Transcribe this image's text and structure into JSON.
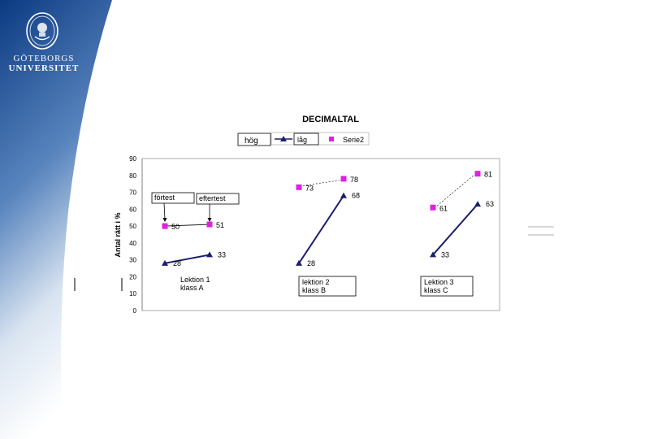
{
  "slide": {
    "university_line1": "GÖTEBORGS",
    "university_line2": "UNIVERSITET",
    "colors": {
      "sidebar_top": "#0b3a82",
      "sidebar_bottom": "#ffffff",
      "white": "#ffffff"
    },
    "icons": {
      "logo": "university-seal-icon"
    }
  },
  "chart_data": {
    "type": "line",
    "title": "DECIMALTAL",
    "ylabel": "Antal rätt i %",
    "xlabel": "",
    "ylim": [
      0,
      90
    ],
    "yticks": [
      0,
      10,
      20,
      30,
      40,
      50,
      60,
      70,
      80,
      90
    ],
    "grid": false,
    "legend_position": "top",
    "legend_box_label": "hög",
    "legend": [
      {
        "name": "låg",
        "marker": "triangle",
        "color": "#1b1f6b"
      },
      {
        "name": "Serie2",
        "marker": "square",
        "color": "#e020e0"
      }
    ],
    "series": [
      {
        "name": "låg",
        "color": "#1b1f6b",
        "marker": "triangle",
        "segments": [
          {
            "x": [
              1,
              2
            ],
            "values": [
              28,
              33
            ],
            "labels": [
              "28",
              "33"
            ]
          },
          {
            "x": [
              4,
              5
            ],
            "values": [
              28,
              68
            ],
            "labels": [
              "28",
              "68"
            ]
          },
          {
            "x": [
              7,
              8
            ],
            "values": [
              33,
              63
            ],
            "labels": [
              "33",
              "63"
            ]
          }
        ]
      },
      {
        "name": "Serie2",
        "color": "#e020e0",
        "marker": "square",
        "segments": [
          {
            "x": [
              1,
              2
            ],
            "values": [
              50,
              51
            ],
            "labels": [
              "50",
              "51"
            ]
          },
          {
            "x": [
              4,
              5
            ],
            "values": [
              73,
              78
            ],
            "labels": [
              "73",
              "78"
            ]
          },
          {
            "x": [
              7,
              8
            ],
            "values": [
              61,
              81
            ],
            "labels": [
              "61",
              "81"
            ]
          }
        ]
      }
    ],
    "annotations": [
      {
        "lines": [
          "förtest"
        ],
        "boxed": true
      },
      {
        "lines": [
          "eftertest"
        ],
        "boxed": true
      },
      {
        "lines": [
          "Lektion 1",
          "klass A"
        ],
        "boxed": false
      },
      {
        "lines": [
          "lektion 2",
          "klass B"
        ],
        "boxed": true
      },
      {
        "lines": [
          "Lektion 3",
          "klass C"
        ],
        "boxed": true
      }
    ]
  }
}
